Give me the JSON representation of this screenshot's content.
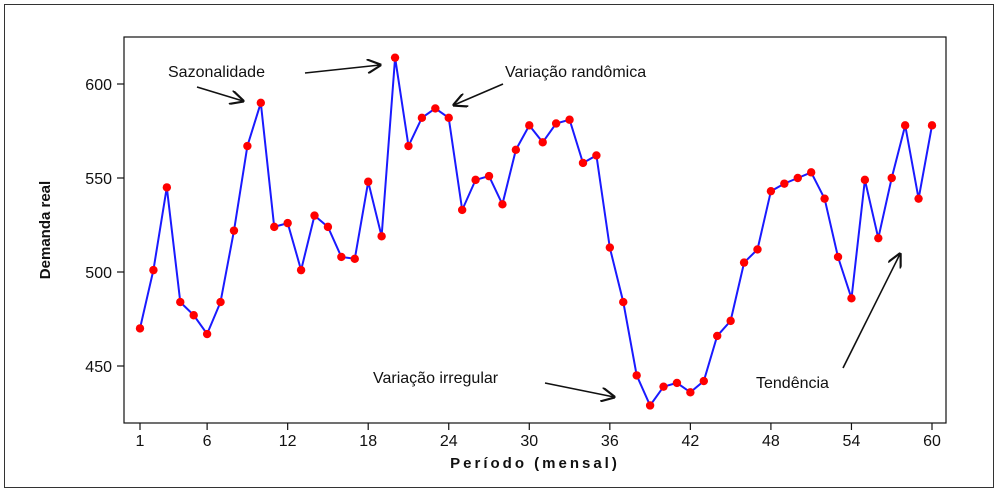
{
  "chart_data": {
    "type": "line",
    "xlabel": "Período (mensal)",
    "ylabel": "Demanda real",
    "xlim": [
      0,
      61
    ],
    "ylim": [
      425,
      625
    ],
    "x_ticks": [
      1,
      6,
      12,
      18,
      24,
      30,
      36,
      42,
      48,
      54,
      60
    ],
    "y_ticks": [
      450,
      500,
      550,
      600
    ],
    "grid": false,
    "line_color": "#1a1aff",
    "marker_color": "#ff0000",
    "series": [
      {
        "x": [
          1,
          2,
          3,
          4,
          5,
          6,
          7,
          8,
          9,
          10,
          11,
          12,
          13,
          14,
          15,
          16,
          17,
          18,
          19,
          20,
          21,
          22,
          23,
          24,
          25,
          26,
          27,
          28,
          29,
          30,
          31,
          32,
          33,
          34,
          35,
          36,
          37,
          38,
          39,
          40,
          41,
          42,
          43,
          44,
          45,
          46,
          47,
          48,
          49,
          50,
          51,
          52,
          53,
          54,
          55,
          56,
          57,
          58,
          59,
          60
        ],
        "values": [
          470,
          501,
          545,
          484,
          477,
          467,
          484,
          522,
          567,
          590,
          524,
          526,
          501,
          530,
          524,
          508,
          507,
          548,
          519,
          614,
          567,
          582,
          587,
          582,
          533,
          549,
          551,
          536,
          565,
          578,
          569,
          579,
          581,
          558,
          562,
          513,
          484,
          445,
          429,
          439,
          441,
          436,
          442,
          466,
          474,
          505,
          512,
          543,
          547,
          550,
          553,
          539,
          508,
          486,
          549,
          518,
          550,
          578,
          539,
          578
        ]
      }
    ],
    "annotations": [
      {
        "text": "Sazonalidade"
      },
      {
        "text": "Variação randômica"
      },
      {
        "text": "Variação irregular"
      },
      {
        "text": "Tendência"
      }
    ]
  }
}
